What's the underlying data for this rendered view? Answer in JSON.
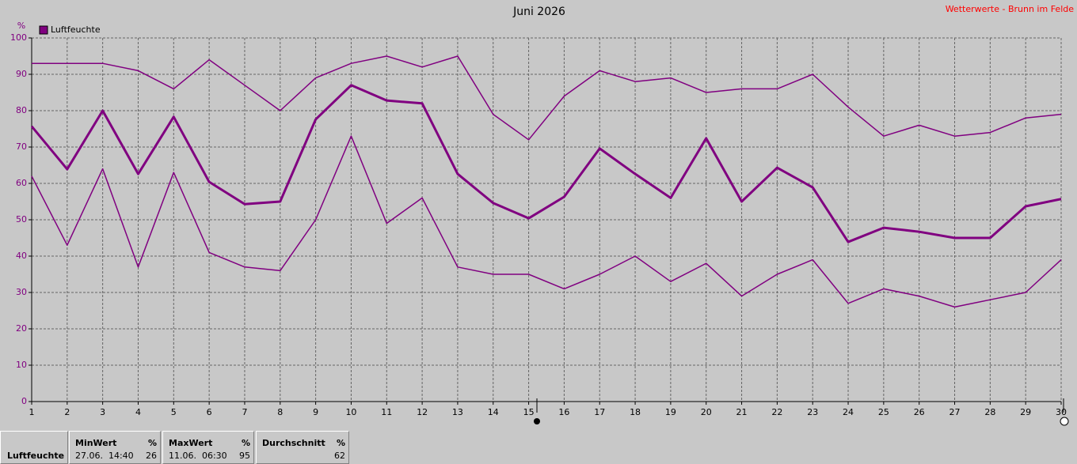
{
  "chart_data": {
    "type": "line",
    "title": "Juni 2026",
    "source": "Wetterwerte - Brunn im Felde",
    "y_unit": "%",
    "x": [
      1,
      2,
      3,
      4,
      5,
      6,
      7,
      8,
      9,
      10,
      11,
      12,
      13,
      14,
      15,
      16,
      17,
      18,
      19,
      20,
      21,
      22,
      23,
      24,
      25,
      26,
      27,
      28,
      29,
      30
    ],
    "xlim": [
      1,
      30
    ],
    "xticks": [
      1,
      2,
      3,
      4,
      5,
      6,
      7,
      8,
      9,
      10,
      11,
      12,
      13,
      14,
      15,
      16,
      17,
      18,
      19,
      20,
      21,
      22,
      23,
      24,
      25,
      26,
      27,
      28,
      29,
      30
    ],
    "ylim": [
      0,
      100
    ],
    "yticks": [
      0,
      10,
      20,
      30,
      40,
      50,
      60,
      70,
      80,
      90,
      100
    ],
    "grid": true,
    "series": [
      {
        "name": "Luftfeuchte",
        "color": "#800080",
        "line_width": 3,
        "values": [
          75.7,
          63.9,
          80,
          62.6,
          78.3,
          60.4,
          54.3,
          55,
          77.6,
          87,
          82.8,
          82,
          62.6,
          54.6,
          50.4,
          56.3,
          69.6,
          62.6,
          56,
          72.4,
          55,
          64.3,
          58.9,
          43.9,
          47.8,
          46.7,
          45,
          45,
          53.7,
          55.7
        ]
      },
      {
        "color": "#800080",
        "line_width": 1.5,
        "values": [
          93,
          93,
          93,
          91,
          86,
          94,
          87,
          80,
          89,
          93,
          95,
          92,
          95,
          79,
          72,
          84,
          91,
          88,
          89,
          85,
          86,
          86,
          90,
          81,
          73,
          76,
          73,
          74,
          78,
          79
        ]
      },
      {
        "color": "#800080",
        "line_width": 1.5,
        "values": [
          62,
          43,
          64,
          37,
          63,
          41,
          37,
          36,
          50,
          73,
          49,
          56,
          37,
          35,
          35,
          31,
          35,
          40,
          33,
          38,
          29,
          35,
          39,
          27,
          31,
          29,
          26,
          28,
          30,
          39
        ]
      }
    ]
  },
  "table": {
    "row_label": "Luftfeuchte",
    "cells": [
      {
        "header": "MinWert",
        "unit": "%",
        "time": "27.06.  14:40",
        "value": 26
      },
      {
        "header": "MaxWert",
        "unit": "%",
        "time": "11.06.  06:30",
        "value": 95
      },
      {
        "header": "Durchschnitt",
        "unit": "%",
        "value": 62
      }
    ]
  }
}
